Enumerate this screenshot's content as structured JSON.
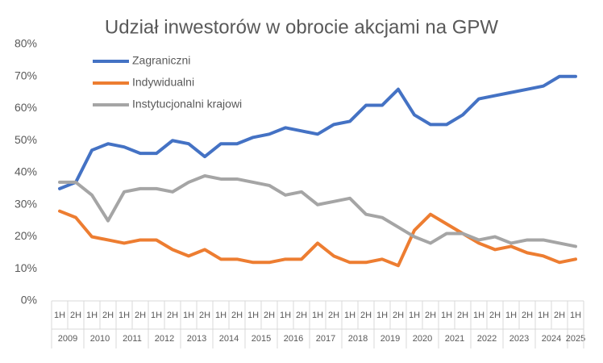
{
  "chart_data": {
    "type": "line",
    "title": "Udział inwestorów w obrocie akcjami na GPW",
    "category_groups": [
      {
        "label": "2009",
        "categories": [
          "1H",
          "2H"
        ]
      },
      {
        "label": "2010",
        "categories": [
          "1H",
          "2H"
        ]
      },
      {
        "label": "2011",
        "categories": [
          "1H",
          "2H"
        ]
      },
      {
        "label": "2012",
        "categories": [
          "1H",
          "2H"
        ]
      },
      {
        "label": "2013",
        "categories": [
          "1H",
          "2H"
        ]
      },
      {
        "label": "2014",
        "categories": [
          "1H",
          "2H"
        ]
      },
      {
        "label": "2015",
        "categories": [
          "1H",
          "2H"
        ]
      },
      {
        "label": "2016",
        "categories": [
          "1H",
          "2H"
        ]
      },
      {
        "label": "2017",
        "categories": [
          "1H",
          "2H"
        ]
      },
      {
        "label": "2018",
        "categories": [
          "1H",
          "2H"
        ]
      },
      {
        "label": "2019",
        "categories": [
          "1H",
          "2H"
        ]
      },
      {
        "label": "2020",
        "categories": [
          "1H",
          "2H"
        ]
      },
      {
        "label": "2021",
        "categories": [
          "1H",
          "2H"
        ]
      },
      {
        "label": "2022",
        "categories": [
          "1H",
          "2H"
        ]
      },
      {
        "label": "2023",
        "categories": [
          "1H",
          "2H"
        ]
      },
      {
        "label": "2024",
        "categories": [
          "1H",
          "2H"
        ]
      },
      {
        "label": "2025",
        "categories": [
          "1H"
        ]
      }
    ],
    "series": [
      {
        "name": "Zagraniczni",
        "color": "#4472c4",
        "values": [
          35,
          37,
          47,
          49,
          48,
          46,
          46,
          50,
          49,
          45,
          49,
          49,
          51,
          52,
          54,
          53,
          52,
          55,
          56,
          61,
          61,
          66,
          58,
          55,
          55,
          58,
          63,
          64,
          65,
          66,
          67,
          70,
          70
        ]
      },
      {
        "name": "Indywidualni",
        "color": "#ed7d31",
        "values": [
          28,
          26,
          20,
          19,
          18,
          19,
          19,
          16,
          14,
          16,
          13,
          13,
          12,
          12,
          13,
          13,
          18,
          14,
          12,
          12,
          13,
          11,
          22,
          27,
          24,
          21,
          18,
          16,
          17,
          15,
          14,
          12,
          13
        ]
      },
      {
        "name": "Instytucjonalni krajowi",
        "color": "#a5a5a5",
        "values": [
          37,
          37,
          33,
          25,
          34,
          35,
          35,
          34,
          37,
          39,
          38,
          38,
          37,
          36,
          33,
          34,
          30,
          31,
          32,
          27,
          26,
          23,
          20,
          18,
          21,
          21,
          19,
          20,
          18,
          19,
          19,
          18,
          17
        ]
      }
    ],
    "ylim": [
      0,
      80
    ],
    "yticks": [
      {
        "value": 0,
        "label": "0%"
      },
      {
        "value": 10,
        "label": "10%"
      },
      {
        "value": 20,
        "label": "20%"
      },
      {
        "value": 30,
        "label": "30%"
      },
      {
        "value": 40,
        "label": "40%"
      },
      {
        "value": 50,
        "label": "50%"
      },
      {
        "value": 60,
        "label": "60%"
      },
      {
        "value": 70,
        "label": "70%"
      },
      {
        "value": 80,
        "label": "80%"
      }
    ],
    "grid": false,
    "legend": "top-left"
  }
}
